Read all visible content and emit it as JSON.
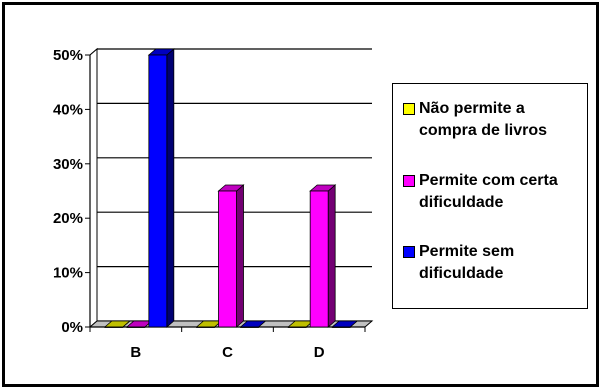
{
  "chart_data": {
    "type": "bar",
    "categories": [
      "B",
      "C",
      "D"
    ],
    "series": [
      {
        "name": "Não permite a compra de livros",
        "color": "#ffff00",
        "values": [
          0,
          0,
          0
        ]
      },
      {
        "name": "Permite com certa dificuldade",
        "color": "#ff00ff",
        "values": [
          0,
          25,
          25
        ]
      },
      {
        "name": "Permite sem dificuldade",
        "color": "#0000ff",
        "values": [
          50,
          0,
          0
        ]
      }
    ],
    "y_ticks": [
      "0%",
      "10%",
      "20%",
      "30%",
      "40%",
      "50%"
    ],
    "ylim": [
      0,
      50
    ],
    "grid": true,
    "legend": "right",
    "title": "",
    "xlabel": "",
    "ylabel": ""
  }
}
